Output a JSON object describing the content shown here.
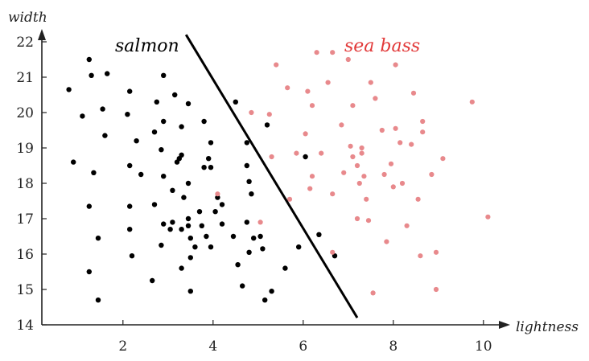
{
  "chart_data": {
    "type": "scatter",
    "xlabel": "lightness",
    "ylabel": "width",
    "xlim": [
      0.2,
      10.2
    ],
    "ylim": [
      14,
      22
    ],
    "xticks": [
      2,
      4,
      6,
      8,
      10
    ],
    "yticks": [
      14,
      15,
      16,
      17,
      18,
      19,
      20,
      21,
      22
    ],
    "grid": false,
    "annotations": [
      {
        "text": "salmon",
        "color": "#000000"
      },
      {
        "text": "sea bass",
        "color": "#e23a3a"
      }
    ],
    "decision_boundary": {
      "x": [
        3.4,
        7.2
      ],
      "y": [
        22.2,
        14.2
      ]
    },
    "series": [
      {
        "color": "#000000",
        "points": [
          [
            0.8,
            20.65
          ],
          [
            1.25,
            21.5
          ],
          [
            1.3,
            21.05
          ],
          [
            1.65,
            21.1
          ],
          [
            1.1,
            19.9
          ],
          [
            1.55,
            20.1
          ],
          [
            1.6,
            19.35
          ],
          [
            0.9,
            18.6
          ],
          [
            1.35,
            18.3
          ],
          [
            1.25,
            17.35
          ],
          [
            1.45,
            16.45
          ],
          [
            1.25,
            15.5
          ],
          [
            1.45,
            14.7
          ],
          [
            2.15,
            20.6
          ],
          [
            2.1,
            19.95
          ],
          [
            2.3,
            19.2
          ],
          [
            2.15,
            18.5
          ],
          [
            2.4,
            18.25
          ],
          [
            2.15,
            17.35
          ],
          [
            2.15,
            16.7
          ],
          [
            2.2,
            15.95
          ],
          [
            2.9,
            21.05
          ],
          [
            2.75,
            20.3
          ],
          [
            2.9,
            19.75
          ],
          [
            2.7,
            19.45
          ],
          [
            2.85,
            18.95
          ],
          [
            2.9,
            18.2
          ],
          [
            2.7,
            17.4
          ],
          [
            2.9,
            16.85
          ],
          [
            2.85,
            16.25
          ],
          [
            2.65,
            15.25
          ],
          [
            3.15,
            20.5
          ],
          [
            3.45,
            20.25
          ],
          [
            3.3,
            19.6
          ],
          [
            3.3,
            18.8
          ],
          [
            3.2,
            18.6
          ],
          [
            3.25,
            18.7
          ],
          [
            3.1,
            17.8
          ],
          [
            3.35,
            17.6
          ],
          [
            3.45,
            18.0
          ],
          [
            3.1,
            16.9
          ],
          [
            3.45,
            17.0
          ],
          [
            3.45,
            16.8
          ],
          [
            3.3,
            16.7
          ],
          [
            3.05,
            16.7
          ],
          [
            3.5,
            16.45
          ],
          [
            3.5,
            15.9
          ],
          [
            3.3,
            15.6
          ],
          [
            3.5,
            14.95
          ],
          [
            3.8,
            19.75
          ],
          [
            3.95,
            19.15
          ],
          [
            3.8,
            18.45
          ],
          [
            3.95,
            18.45
          ],
          [
            3.9,
            18.7
          ],
          [
            3.85,
            16.5
          ],
          [
            3.7,
            17.2
          ],
          [
            3.75,
            16.8
          ],
          [
            3.6,
            16.2
          ],
          [
            3.95,
            16.2
          ],
          [
            4.1,
            17.6
          ],
          [
            4.2,
            17.4
          ],
          [
            4.05,
            17.2
          ],
          [
            4.2,
            16.85
          ],
          [
            4.5,
            20.3
          ],
          [
            4.45,
            16.5
          ],
          [
            4.55,
            15.7
          ],
          [
            4.65,
            15.1
          ],
          [
            4.75,
            19.15
          ],
          [
            4.75,
            18.5
          ],
          [
            4.8,
            18.05
          ],
          [
            4.85,
            17.7
          ],
          [
            4.75,
            16.9
          ],
          [
            4.9,
            16.45
          ],
          [
            4.8,
            16.05
          ],
          [
            5.05,
            16.5
          ],
          [
            5.1,
            16.15
          ],
          [
            5.2,
            19.65
          ],
          [
            5.3,
            14.95
          ],
          [
            5.15,
            14.7
          ],
          [
            5.6,
            15.6
          ],
          [
            5.9,
            16.2
          ],
          [
            6.05,
            18.75
          ],
          [
            6.35,
            16.55
          ],
          [
            6.7,
            15.95
          ]
        ]
      },
      {
        "color": "#e8898c",
        "points": [
          [
            4.1,
            17.7
          ],
          [
            4.85,
            20.0
          ],
          [
            5.25,
            19.95
          ],
          [
            5.3,
            18.75
          ],
          [
            5.05,
            16.9
          ],
          [
            5.4,
            21.35
          ],
          [
            5.65,
            20.7
          ],
          [
            5.85,
            18.85
          ],
          [
            5.7,
            17.55
          ],
          [
            6.05,
            19.4
          ],
          [
            6.1,
            20.6
          ],
          [
            6.15,
            17.85
          ],
          [
            6.2,
            18.2
          ],
          [
            6.2,
            20.2
          ],
          [
            6.3,
            21.7
          ],
          [
            6.4,
            18.85
          ],
          [
            6.55,
            20.85
          ],
          [
            6.65,
            17.7
          ],
          [
            6.65,
            16.05
          ],
          [
            6.85,
            19.65
          ],
          [
            6.9,
            18.3
          ],
          [
            7.0,
            21.5
          ],
          [
            7.1,
            20.2
          ],
          [
            7.05,
            19.05
          ],
          [
            7.1,
            18.75
          ],
          [
            7.2,
            17.0
          ],
          [
            7.2,
            18.5
          ],
          [
            7.25,
            18.0
          ],
          [
            7.3,
            19.0
          ],
          [
            7.3,
            18.85
          ],
          [
            7.35,
            18.2
          ],
          [
            7.4,
            17.55
          ],
          [
            7.45,
            16.95
          ],
          [
            7.5,
            20.85
          ],
          [
            7.6,
            20.4
          ],
          [
            7.55,
            14.9
          ],
          [
            7.75,
            19.5
          ],
          [
            7.8,
            18.25
          ],
          [
            7.85,
            16.35
          ],
          [
            7.95,
            18.55
          ],
          [
            8.0,
            17.9
          ],
          [
            8.05,
            21.35
          ],
          [
            8.05,
            19.55
          ],
          [
            8.15,
            19.15
          ],
          [
            8.2,
            18.0
          ],
          [
            8.3,
            16.8
          ],
          [
            8.4,
            19.1
          ],
          [
            8.45,
            20.55
          ],
          [
            8.55,
            17.55
          ],
          [
            8.6,
            15.95
          ],
          [
            8.65,
            19.75
          ],
          [
            8.65,
            19.45
          ],
          [
            8.85,
            18.25
          ],
          [
            9.1,
            18.7
          ],
          [
            8.95,
            16.05
          ],
          [
            8.95,
            15.0
          ],
          [
            9.75,
            20.3
          ],
          [
            10.1,
            17.05
          ],
          [
            6.65,
            21.7
          ]
        ]
      }
    ]
  }
}
